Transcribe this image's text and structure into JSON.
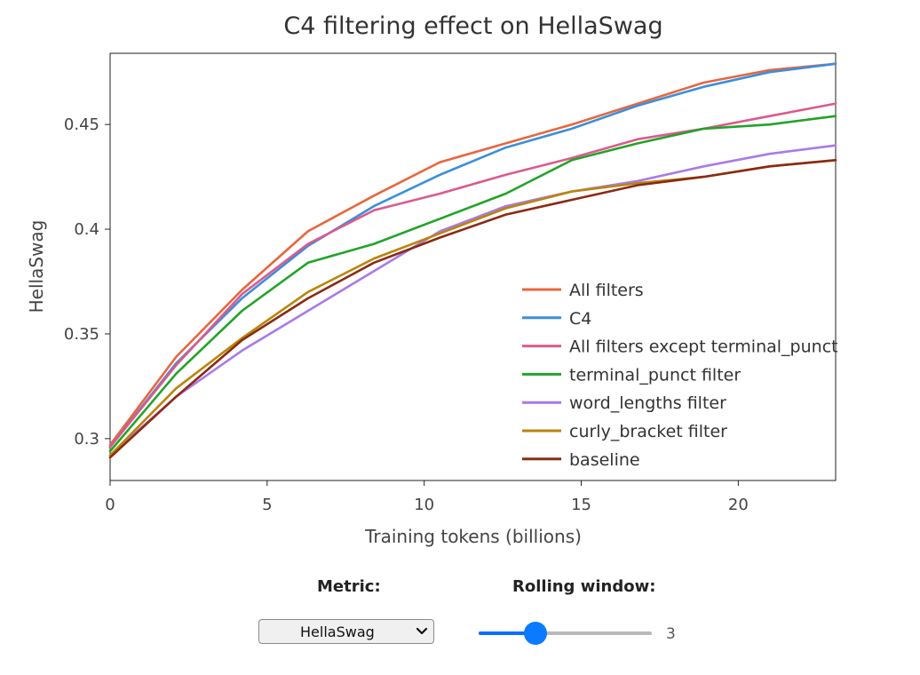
{
  "chart_data": {
    "type": "line",
    "title": "C4 filtering effect on HellaSwag",
    "xlabel": "Training tokens (billions)",
    "ylabel": "HellaSwag",
    "xlim": [
      0,
      23.1
    ],
    "ylim": [
      0.28,
      0.484
    ],
    "xticks": [
      0,
      5,
      10,
      15,
      20
    ],
    "yticks": [
      0.3,
      0.35,
      0.4,
      0.45
    ],
    "ytick_labels": [
      "0.3",
      "0.35",
      "0.4",
      "0.45"
    ],
    "legend_position": "bottom-right",
    "x": [
      0,
      2.1,
      4.2,
      6.3,
      8.4,
      10.5,
      12.6,
      14.7,
      16.8,
      18.9,
      21.0,
      23.1
    ],
    "series": [
      {
        "name": "All filters",
        "color": "#e8663d",
        "values": [
          0.297,
          0.339,
          0.371,
          0.399,
          0.416,
          0.432,
          0.441,
          0.45,
          0.46,
          0.47,
          0.476,
          0.479
        ]
      },
      {
        "name": "C4",
        "color": "#3b8fdc",
        "values": [
          0.296,
          0.336,
          0.367,
          0.392,
          0.411,
          0.426,
          0.439,
          0.448,
          0.459,
          0.468,
          0.475,
          0.479
        ]
      },
      {
        "name": "All filters except terminal_punct",
        "color": "#dc5a8c",
        "values": [
          0.296,
          0.335,
          0.369,
          0.393,
          0.409,
          0.417,
          0.426,
          0.434,
          0.443,
          0.448,
          0.454,
          0.46
        ]
      },
      {
        "name": "terminal_punct filter",
        "color": "#22a328",
        "values": [
          0.294,
          0.331,
          0.361,
          0.384,
          0.393,
          0.405,
          0.417,
          0.433,
          0.441,
          0.448,
          0.45,
          0.454
        ]
      },
      {
        "name": "word_lengths filter",
        "color": "#a97ae8",
        "values": [
          0.292,
          0.32,
          0.342,
          0.361,
          0.38,
          0.399,
          0.411,
          0.418,
          0.423,
          0.43,
          0.436,
          0.44
        ]
      },
      {
        "name": "curly_bracket filter",
        "color": "#b8860b",
        "values": [
          0.292,
          0.324,
          0.348,
          0.37,
          0.386,
          0.398,
          0.41,
          0.418,
          0.422,
          0.425,
          0.43,
          0.433
        ]
      },
      {
        "name": "baseline",
        "color": "#8b2a14",
        "values": [
          0.291,
          0.32,
          0.347,
          0.367,
          0.384,
          0.396,
          0.407,
          0.414,
          0.421,
          0.425,
          0.43,
          0.433
        ]
      }
    ]
  },
  "controls": {
    "metric_label": "Metric:",
    "metric_value": "HellaSwag",
    "window_label": "Rolling window:",
    "window_value": "3",
    "window_fraction": 0.33,
    "accent_color": "#0a7aff"
  }
}
